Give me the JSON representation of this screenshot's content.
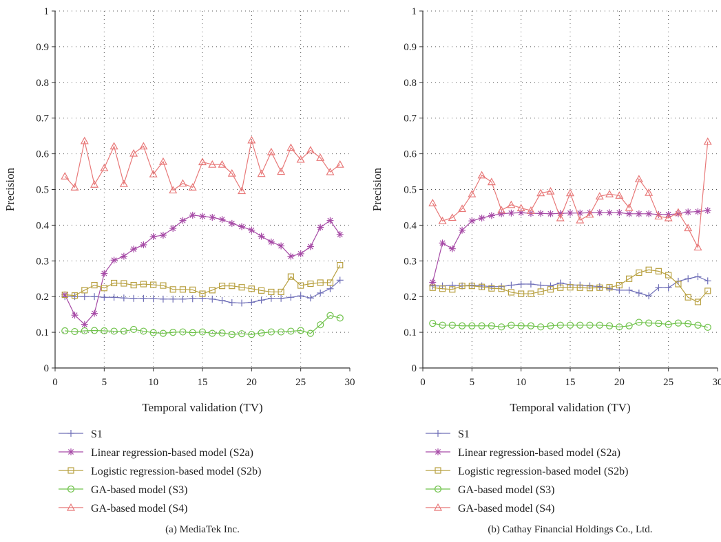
{
  "chart_data": [
    {
      "type": "line",
      "caption": "(a)  MediaTek Inc.",
      "xlabel": "Temporal validation (TV)",
      "ylabel": "Precision",
      "xlim": [
        0,
        30
      ],
      "ylim": [
        0,
        1
      ],
      "xticks": [
        0,
        5,
        10,
        15,
        20,
        25,
        30
      ],
      "yticks": [
        0,
        0.1,
        0.2,
        0.3,
        0.4,
        0.5,
        0.6,
        0.7,
        0.8,
        0.9,
        1
      ],
      "grid": true,
      "legend_position": "bottom",
      "x": [
        1,
        2,
        3,
        4,
        5,
        6,
        7,
        8,
        9,
        10,
        11,
        12,
        13,
        14,
        15,
        16,
        17,
        18,
        19,
        20,
        21,
        22,
        23,
        24,
        25,
        26,
        27,
        28,
        29
      ],
      "series": [
        {
          "name": "S1",
          "color": "#6f6fb8",
          "marker": "plus",
          "values": [
            0.2,
            0.2,
            0.2,
            0.2,
            0.198,
            0.198,
            0.196,
            0.195,
            0.195,
            0.194,
            0.193,
            0.193,
            0.193,
            0.194,
            0.195,
            0.193,
            0.189,
            0.183,
            0.182,
            0.184,
            0.19,
            0.195,
            0.195,
            0.198,
            0.202,
            0.196,
            0.21,
            0.222,
            0.246
          ]
        },
        {
          "name": "Linear regression-based model (S2a)",
          "color": "#a64aa6",
          "marker": "star",
          "values": [
            0.205,
            0.148,
            0.122,
            0.153,
            0.265,
            0.302,
            0.313,
            0.333,
            0.345,
            0.368,
            0.372,
            0.391,
            0.413,
            0.428,
            0.425,
            0.422,
            0.416,
            0.405,
            0.396,
            0.386,
            0.369,
            0.353,
            0.342,
            0.313,
            0.32,
            0.34,
            0.394,
            0.413,
            0.374
          ]
        },
        {
          "name": "Logistic regression-based model (S2b)",
          "color": "#b8a040",
          "marker": "square",
          "values": [
            0.205,
            0.203,
            0.218,
            0.232,
            0.224,
            0.238,
            0.237,
            0.232,
            0.235,
            0.233,
            0.231,
            0.22,
            0.22,
            0.219,
            0.208,
            0.218,
            0.23,
            0.23,
            0.226,
            0.222,
            0.217,
            0.213,
            0.213,
            0.256,
            0.231,
            0.236,
            0.239,
            0.239,
            0.288
          ]
        },
        {
          "name": "GA-based model (S3)",
          "color": "#6fc24a",
          "marker": "circle",
          "values": [
            0.104,
            0.102,
            0.104,
            0.105,
            0.104,
            0.103,
            0.103,
            0.108,
            0.103,
            0.099,
            0.097,
            0.1,
            0.101,
            0.099,
            0.101,
            0.097,
            0.098,
            0.094,
            0.096,
            0.094,
            0.098,
            0.101,
            0.101,
            0.103,
            0.105,
            0.097,
            0.121,
            0.147,
            0.14
          ]
        },
        {
          "name": "GA-based model (S4)",
          "color": "#e87878",
          "marker": "triangle",
          "values": [
            0.537,
            0.506,
            0.636,
            0.514,
            0.56,
            0.621,
            0.516,
            0.601,
            0.621,
            0.543,
            0.578,
            0.498,
            0.517,
            0.506,
            0.577,
            0.57,
            0.57,
            0.545,
            0.496,
            0.638,
            0.544,
            0.605,
            0.55,
            0.617,
            0.584,
            0.61,
            0.589,
            0.549,
            0.57
          ]
        }
      ]
    },
    {
      "type": "line",
      "caption": "(b)  Cathay Financial Holdings Co., Ltd.",
      "xlabel": "Temporal validation (TV)",
      "ylabel": "Precision",
      "xlim": [
        0,
        30
      ],
      "ylim": [
        0,
        1
      ],
      "xticks": [
        0,
        5,
        10,
        15,
        20,
        25,
        30
      ],
      "yticks": [
        0,
        0.1,
        0.2,
        0.3,
        0.4,
        0.5,
        0.6,
        0.7,
        0.8,
        0.9,
        1
      ],
      "grid": true,
      "legend_position": "bottom",
      "x": [
        1,
        2,
        3,
        4,
        5,
        6,
        7,
        8,
        9,
        10,
        11,
        12,
        13,
        14,
        15,
        16,
        17,
        18,
        19,
        20,
        21,
        22,
        23,
        24,
        25,
        26,
        27,
        28,
        29
      ],
      "series": [
        {
          "name": "S1",
          "color": "#6f6fb8",
          "marker": "plus",
          "values": [
            0.23,
            0.23,
            0.232,
            0.23,
            0.232,
            0.23,
            0.228,
            0.228,
            0.232,
            0.235,
            0.235,
            0.232,
            0.23,
            0.238,
            0.233,
            0.232,
            0.23,
            0.228,
            0.222,
            0.218,
            0.218,
            0.21,
            0.202,
            0.225,
            0.225,
            0.243,
            0.25,
            0.256,
            0.244
          ]
        },
        {
          "name": "Linear regression-based model (S2a)",
          "color": "#a64aa6",
          "marker": "star",
          "values": [
            0.24,
            0.35,
            0.334,
            0.386,
            0.412,
            0.42,
            0.427,
            0.432,
            0.434,
            0.435,
            0.433,
            0.433,
            0.432,
            0.433,
            0.434,
            0.434,
            0.435,
            0.435,
            0.435,
            0.435,
            0.432,
            0.432,
            0.432,
            0.43,
            0.43,
            0.432,
            0.437,
            0.438,
            0.441
          ]
        },
        {
          "name": "Logistic regression-based model (S2b)",
          "color": "#b8a040",
          "marker": "square",
          "values": [
            0.225,
            0.222,
            0.22,
            0.23,
            0.23,
            0.227,
            0.223,
            0.222,
            0.212,
            0.208,
            0.208,
            0.214,
            0.22,
            0.225,
            0.226,
            0.225,
            0.224,
            0.225,
            0.226,
            0.232,
            0.25,
            0.267,
            0.275,
            0.271,
            0.26,
            0.235,
            0.198,
            0.185,
            0.216
          ]
        },
        {
          "name": "GA-based model (S3)",
          "color": "#6fc24a",
          "marker": "circle",
          "values": [
            0.125,
            0.12,
            0.12,
            0.118,
            0.118,
            0.118,
            0.118,
            0.115,
            0.12,
            0.118,
            0.118,
            0.115,
            0.118,
            0.12,
            0.12,
            0.12,
            0.12,
            0.12,
            0.118,
            0.115,
            0.118,
            0.128,
            0.126,
            0.125,
            0.122,
            0.126,
            0.124,
            0.12,
            0.114
          ]
        },
        {
          "name": "GA-based model (S4)",
          "color": "#e87878",
          "marker": "triangle",
          "values": [
            0.462,
            0.412,
            0.421,
            0.446,
            0.487,
            0.54,
            0.521,
            0.442,
            0.457,
            0.448,
            0.441,
            0.49,
            0.495,
            0.42,
            0.49,
            0.414,
            0.43,
            0.481,
            0.487,
            0.483,
            0.449,
            0.529,
            0.491,
            0.425,
            0.42,
            0.436,
            0.392,
            0.338,
            0.634
          ]
        }
      ]
    }
  ]
}
